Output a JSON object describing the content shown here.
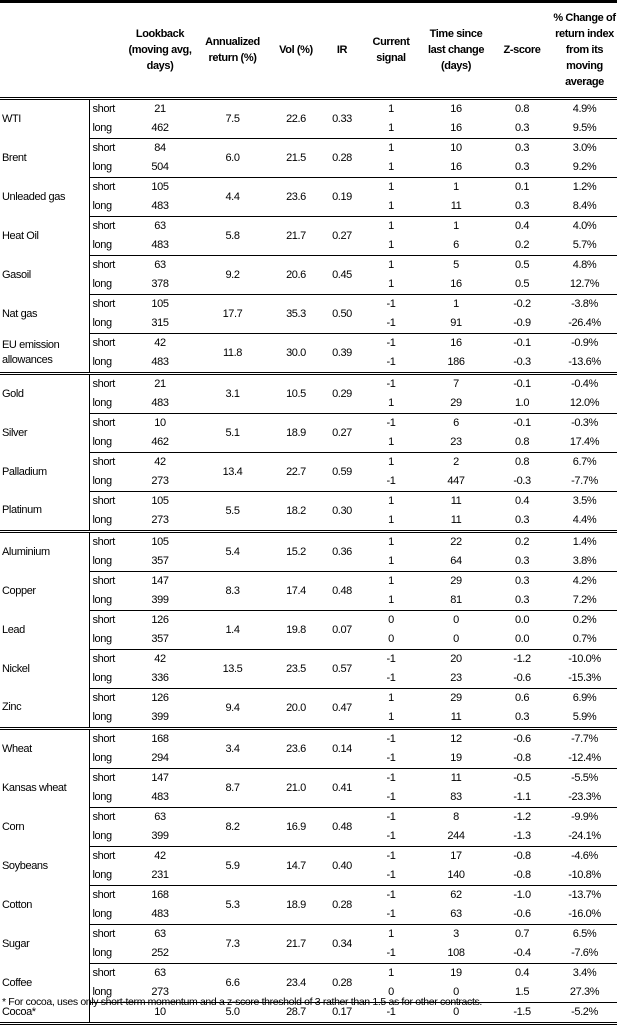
{
  "headers": [
    "",
    "",
    "Lookback (moving avg, days)",
    "Annualized return (%)",
    "Vol (%)",
    "IR",
    "Current signal",
    "Time since last change (days)",
    "Z-score",
    "% Change of return index from its moving average"
  ],
  "sections": [
    {
      "commodities": [
        {
          "name": "WTI",
          "ann": "7.5",
          "vol": "22.6",
          "ir": "0.33",
          "rows": [
            {
              "type": "short",
              "lookback": "21",
              "signal": "1",
              "time": "16",
              "z": "0.8",
              "pct": "4.9%"
            },
            {
              "type": "long",
              "lookback": "462",
              "signal": "1",
              "time": "16",
              "z": "0.3",
              "pct": "9.5%"
            }
          ]
        },
        {
          "name": "Brent",
          "ann": "6.0",
          "vol": "21.5",
          "ir": "0.28",
          "rows": [
            {
              "type": "short",
              "lookback": "84",
              "signal": "1",
              "time": "10",
              "z": "0.3",
              "pct": "3.0%"
            },
            {
              "type": "long",
              "lookback": "504",
              "signal": "1",
              "time": "16",
              "z": "0.3",
              "pct": "9.2%"
            }
          ]
        },
        {
          "name": "Unleaded gas",
          "ann": "4.4",
          "vol": "23.6",
          "ir": "0.19",
          "rows": [
            {
              "type": "short",
              "lookback": "105",
              "signal": "1",
              "time": "1",
              "z": "0.1",
              "pct": "1.2%"
            },
            {
              "type": "long",
              "lookback": "483",
              "signal": "1",
              "time": "11",
              "z": "0.3",
              "pct": "8.4%"
            }
          ]
        },
        {
          "name": "Heat Oil",
          "ann": "5.8",
          "vol": "21.7",
          "ir": "0.27",
          "rows": [
            {
              "type": "short",
              "lookback": "63",
              "signal": "1",
              "time": "1",
              "z": "0.4",
              "pct": "4.0%"
            },
            {
              "type": "long",
              "lookback": "483",
              "signal": "1",
              "time": "6",
              "z": "0.2",
              "pct": "5.7%"
            }
          ]
        },
        {
          "name": "Gasoil",
          "ann": "9.2",
          "vol": "20.6",
          "ir": "0.45",
          "rows": [
            {
              "type": "short",
              "lookback": "63",
              "signal": "1",
              "time": "5",
              "z": "0.5",
              "pct": "4.8%"
            },
            {
              "type": "long",
              "lookback": "378",
              "signal": "1",
              "time": "16",
              "z": "0.5",
              "pct": "12.7%"
            }
          ]
        },
        {
          "name": "Nat gas",
          "ann": "17.7",
          "vol": "35.3",
          "ir": "0.50",
          "rows": [
            {
              "type": "short",
              "lookback": "105",
              "signal": "-1",
              "time": "1",
              "z": "-0.2",
              "pct": "-3.8%"
            },
            {
              "type": "long",
              "lookback": "315",
              "signal": "-1",
              "time": "91",
              "z": "-0.9",
              "pct": "-26.4%"
            }
          ]
        },
        {
          "name": "EU emission allowances",
          "ann": "11.8",
          "vol": "30.0",
          "ir": "0.39",
          "rows": [
            {
              "type": "short",
              "lookback": "42",
              "signal": "-1",
              "time": "16",
              "z": "-0.1",
              "pct": "-0.9%"
            },
            {
              "type": "long",
              "lookback": "483",
              "signal": "-1",
              "time": "186",
              "z": "-0.3",
              "pct": "-13.6%"
            }
          ]
        }
      ]
    },
    {
      "commodities": [
        {
          "name": "Gold",
          "ann": "3.1",
          "vol": "10.5",
          "ir": "0.29",
          "rows": [
            {
              "type": "short",
              "lookback": "21",
              "signal": "-1",
              "time": "7",
              "z": "-0.1",
              "pct": "-0.4%"
            },
            {
              "type": "long",
              "lookback": "483",
              "signal": "1",
              "time": "29",
              "z": "1.0",
              "pct": "12.0%"
            }
          ]
        },
        {
          "name": "Silver",
          "ann": "5.1",
          "vol": "18.9",
          "ir": "0.27",
          "rows": [
            {
              "type": "short",
              "lookback": "10",
              "signal": "-1",
              "time": "6",
              "z": "-0.1",
              "pct": "-0.3%"
            },
            {
              "type": "long",
              "lookback": "462",
              "signal": "1",
              "time": "23",
              "z": "0.8",
              "pct": "17.4%"
            }
          ]
        },
        {
          "name": "Palladium",
          "ann": "13.4",
          "vol": "22.7",
          "ir": "0.59",
          "rows": [
            {
              "type": "short",
              "lookback": "42",
              "signal": "1",
              "time": "2",
              "z": "0.8",
              "pct": "6.7%"
            },
            {
              "type": "long",
              "lookback": "273",
              "signal": "-1",
              "time": "447",
              "z": "-0.3",
              "pct": "-7.7%"
            }
          ]
        },
        {
          "name": "Platinum",
          "ann": "5.5",
          "vol": "18.2",
          "ir": "0.30",
          "rows": [
            {
              "type": "short",
              "lookback": "105",
              "signal": "1",
              "time": "11",
              "z": "0.4",
              "pct": "3.5%"
            },
            {
              "type": "long",
              "lookback": "273",
              "signal": "1",
              "time": "11",
              "z": "0.3",
              "pct": "4.4%"
            }
          ]
        }
      ]
    },
    {
      "commodities": [
        {
          "name": "Aluminium",
          "ann": "5.4",
          "vol": "15.2",
          "ir": "0.36",
          "rows": [
            {
              "type": "short",
              "lookback": "105",
              "signal": "1",
              "time": "22",
              "z": "0.2",
              "pct": "1.4%"
            },
            {
              "type": "long",
              "lookback": "357",
              "signal": "1",
              "time": "64",
              "z": "0.3",
              "pct": "3.8%"
            }
          ]
        },
        {
          "name": "Copper",
          "ann": "8.3",
          "vol": "17.4",
          "ir": "0.48",
          "rows": [
            {
              "type": "short",
              "lookback": "147",
              "signal": "1",
              "time": "29",
              "z": "0.3",
              "pct": "4.2%"
            },
            {
              "type": "long",
              "lookback": "399",
              "signal": "1",
              "time": "81",
              "z": "0.3",
              "pct": "7.2%"
            }
          ]
        },
        {
          "name": "Lead",
          "ann": "1.4",
          "vol": "19.8",
          "ir": "0.07",
          "rows": [
            {
              "type": "short",
              "lookback": "126",
              "signal": "0",
              "time": "0",
              "z": "0.0",
              "pct": "0.2%"
            },
            {
              "type": "long",
              "lookback": "357",
              "signal": "0",
              "time": "0",
              "z": "0.0",
              "pct": "0.7%"
            }
          ]
        },
        {
          "name": "Nickel",
          "ann": "13.5",
          "vol": "23.5",
          "ir": "0.57",
          "rows": [
            {
              "type": "short",
              "lookback": "42",
              "signal": "-1",
              "time": "20",
              "z": "-1.2",
              "pct": "-10.0%"
            },
            {
              "type": "long",
              "lookback": "336",
              "signal": "-1",
              "time": "23",
              "z": "-0.6",
              "pct": "-15.3%"
            }
          ]
        },
        {
          "name": "Zinc",
          "ann": "9.4",
          "vol": "20.0",
          "ir": "0.47",
          "rows": [
            {
              "type": "short",
              "lookback": "126",
              "signal": "1",
              "time": "29",
              "z": "0.6",
              "pct": "6.9%"
            },
            {
              "type": "long",
              "lookback": "399",
              "signal": "1",
              "time": "11",
              "z": "0.3",
              "pct": "5.9%"
            }
          ]
        }
      ]
    },
    {
      "commodities": [
        {
          "name": "Wheat",
          "ann": "3.4",
          "vol": "23.6",
          "ir": "0.14",
          "rows": [
            {
              "type": "short",
              "lookback": "168",
              "signal": "-1",
              "time": "12",
              "z": "-0.6",
              "pct": "-7.7%"
            },
            {
              "type": "long",
              "lookback": "294",
              "signal": "-1",
              "time": "19",
              "z": "-0.8",
              "pct": "-12.4%"
            }
          ]
        },
        {
          "name": "Kansas wheat",
          "ann": "8.7",
          "vol": "21.0",
          "ir": "0.41",
          "rows": [
            {
              "type": "short",
              "lookback": "147",
              "signal": "-1",
              "time": "11",
              "z": "-0.5",
              "pct": "-5.5%"
            },
            {
              "type": "long",
              "lookback": "483",
              "signal": "-1",
              "time": "83",
              "z": "-1.1",
              "pct": "-23.3%"
            }
          ]
        },
        {
          "name": "Corn",
          "ann": "8.2",
          "vol": "16.9",
          "ir": "0.48",
          "rows": [
            {
              "type": "short",
              "lookback": "63",
              "signal": "-1",
              "time": "8",
              "z": "-1.2",
              "pct": "-9.9%"
            },
            {
              "type": "long",
              "lookback": "399",
              "signal": "-1",
              "time": "244",
              "z": "-1.3",
              "pct": "-24.1%"
            }
          ]
        },
        {
          "name": "Soybeans",
          "ann": "5.9",
          "vol": "14.7",
          "ir": "0.40",
          "rows": [
            {
              "type": "short",
              "lookback": "42",
              "signal": "-1",
              "time": "17",
              "z": "-0.8",
              "pct": "-4.6%"
            },
            {
              "type": "long",
              "lookback": "231",
              "signal": "-1",
              "time": "140",
              "z": "-0.8",
              "pct": "-10.8%"
            }
          ]
        },
        {
          "name": "Cotton",
          "ann": "5.3",
          "vol": "18.9",
          "ir": "0.28",
          "rows": [
            {
              "type": "short",
              "lookback": "168",
              "signal": "-1",
              "time": "62",
              "z": "-1.0",
              "pct": "-13.7%"
            },
            {
              "type": "long",
              "lookback": "483",
              "signal": "-1",
              "time": "63",
              "z": "-0.6",
              "pct": "-16.0%"
            }
          ]
        },
        {
          "name": "Sugar",
          "ann": "7.3",
          "vol": "21.7",
          "ir": "0.34",
          "rows": [
            {
              "type": "short",
              "lookback": "63",
              "signal": "1",
              "time": "3",
              "z": "0.7",
              "pct": "6.5%"
            },
            {
              "type": "long",
              "lookback": "252",
              "signal": "-1",
              "time": "108",
              "z": "-0.4",
              "pct": "-7.6%"
            }
          ]
        },
        {
          "name": "Coffee",
          "ann": "6.6",
          "vol": "23.4",
          "ir": "0.28",
          "rows": [
            {
              "type": "short",
              "lookback": "63",
              "signal": "1",
              "time": "19",
              "z": "0.4",
              "pct": "3.4%"
            },
            {
              "type": "long",
              "lookback": "273",
              "signal": "0",
              "time": "0",
              "z": "1.5",
              "pct": "27.3%"
            }
          ]
        },
        {
          "name": "Cocoa*",
          "ann": "5.0",
          "vol": "28.7",
          "ir": "0.17",
          "rows": [
            {
              "type": "",
              "lookback": "10",
              "signal": "-1",
              "time": "0",
              "z": "-1.5",
              "pct": "-5.2%"
            }
          ]
        }
      ]
    }
  ],
  "footnote": "* For cocoa, uses only short-term momentum and a z-score threshold of 3 rather than 1.5 as for other contracts."
}
